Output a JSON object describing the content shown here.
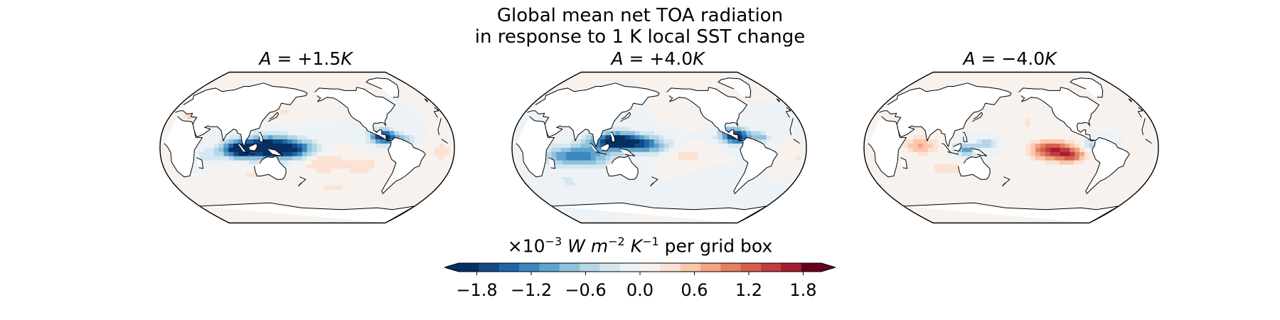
{
  "chart_data": {
    "type": "map",
    "title_line1": "Global mean net TOA radiation",
    "title_line2": "in response to 1 K local SST change",
    "panels": [
      {
        "title_var": "A",
        "title_value": "+1.5",
        "title_unit": "K",
        "pattern": "warm_pool_strong"
      },
      {
        "title_var": "A",
        "title_value": "+4.0",
        "title_unit": "K",
        "pattern": "indo_pacific_broad"
      },
      {
        "title_var": "A",
        "title_value": "−4.0",
        "title_unit": "K",
        "pattern": "east_pacific_positive"
      }
    ],
    "colorbar": {
      "label_prefix": "×10",
      "label_exp1": "−3",
      "label_W": "W",
      "label_m": "m",
      "label_exp2": "−2",
      "label_K": "K",
      "label_exp3": "−1",
      "label_suffix": "per grid box",
      "vmin": -2.0,
      "vmax": 2.0,
      "step": 0.2,
      "extend": "both",
      "ticks": [
        -1.8,
        -1.2,
        -0.6,
        0.0,
        0.6,
        1.2,
        1.8
      ],
      "tick_labels": [
        "−1.8",
        "−1.2",
        "−0.6",
        "0.0",
        "0.6",
        "1.2",
        "1.8"
      ],
      "colors": [
        "#053061",
        "#154a85",
        "#2166ac",
        "#3a87bd",
        "#5fa3cc",
        "#8ec2dc",
        "#b6d6e8",
        "#d5e7f1",
        "#ecf2f6",
        "#f7f2ee",
        "#fbe2d3",
        "#fbc7ac",
        "#f3a481",
        "#e3805f",
        "#d6604d",
        "#c03d3e",
        "#a71d30",
        "#67001f"
      ],
      "under_color": "#053061",
      "over_color": "#67001f"
    }
  }
}
